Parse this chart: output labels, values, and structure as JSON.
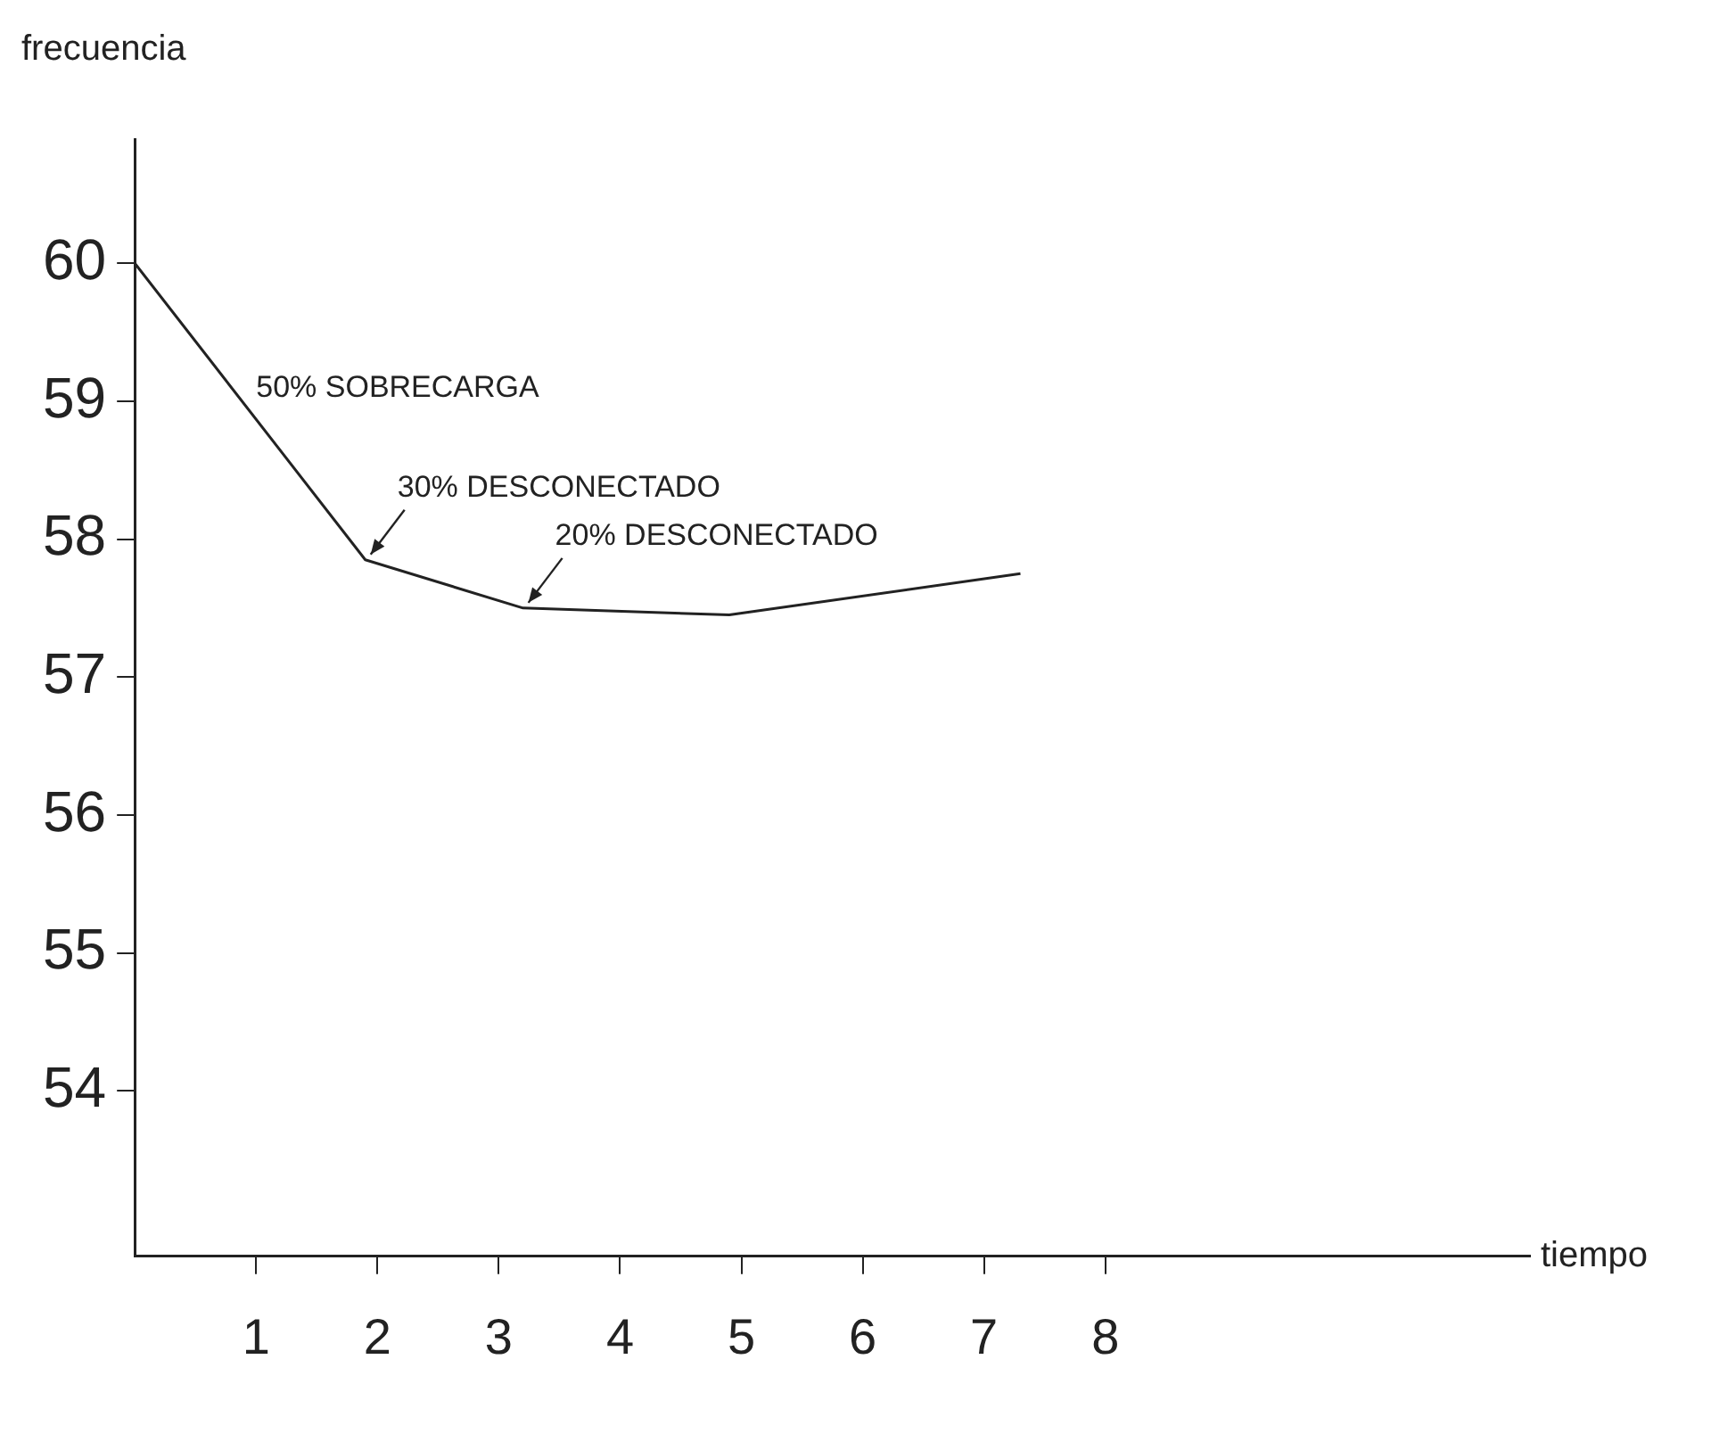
{
  "chart_data": {
    "type": "line",
    "xlabel": "tiempo",
    "ylabel": "frecuencia",
    "x": [
      0,
      1.9,
      3.2,
      4.9,
      7.3
    ],
    "values": [
      60,
      57.85,
      57.5,
      57.45,
      57.75
    ],
    "color": "#222222",
    "xlim": [
      0,
      11.5
    ],
    "xticks": [
      1,
      2,
      3,
      4,
      5,
      6,
      7,
      8
    ],
    "ylim": [
      52.8,
      60.9
    ],
    "yticks": [
      54,
      55,
      56,
      57,
      58,
      59,
      60
    ],
    "grid": false,
    "legend": false,
    "marker": "none",
    "line_style": "solid",
    "annotations": [
      "50% SOBRECARGA",
      {
        "text": "30% DESCONECTADO",
        "x": 1.9,
        "y": 57.85
      },
      {
        "text": "20% DESCONECTADO",
        "x": 3.2,
        "y": 57.5
      }
    ]
  }
}
